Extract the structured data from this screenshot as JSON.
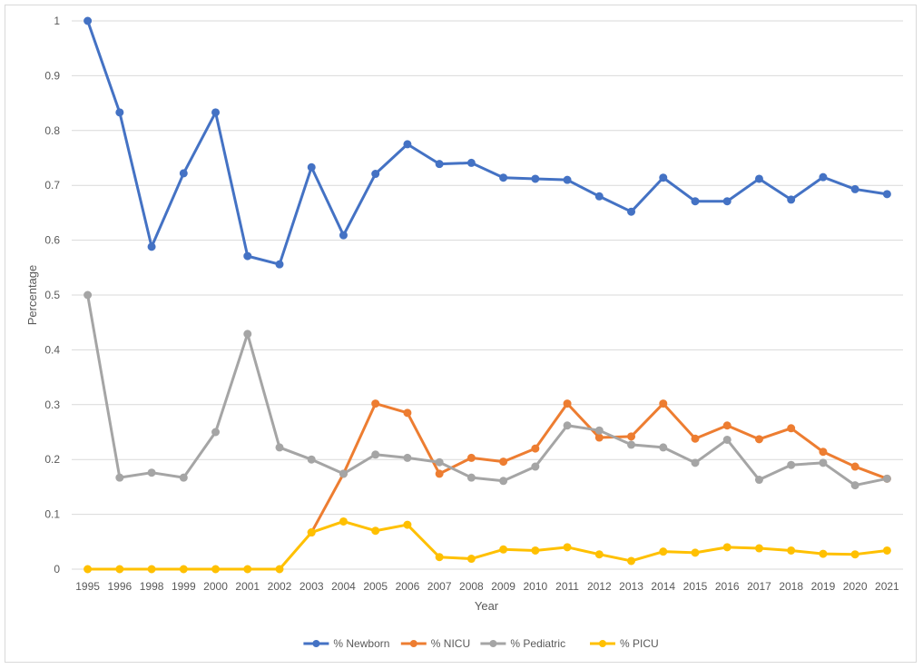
{
  "chart_data": {
    "type": "line",
    "xlabel": "Year",
    "ylabel": "Percentage",
    "ylim": [
      0,
      1
    ],
    "yticks": [
      "0",
      "0.1",
      "0.2",
      "0.3",
      "0.4",
      "0.5",
      "0.6",
      "0.7",
      "0.8",
      "0.9",
      "1"
    ],
    "categories": [
      "1995",
      "1996",
      "1998",
      "1999",
      "2000",
      "2001",
      "2002",
      "2003",
      "2004",
      "2005",
      "2006",
      "2007",
      "2008",
      "2009",
      "2010",
      "2011",
      "2012",
      "2013",
      "2014",
      "2015",
      "2016",
      "2017",
      "2018",
      "2019",
      "2020",
      "2021"
    ],
    "grid": "horizontal",
    "legend_position": "bottom",
    "series": [
      {
        "name": "% Newborn",
        "color": "#4472c4",
        "values": [
          1.0,
          0.833,
          0.588,
          0.722,
          0.833,
          0.571,
          0.556,
          0.733,
          0.609,
          0.721,
          0.775,
          0.739,
          0.741,
          0.714,
          0.712,
          0.71,
          0.68,
          0.652,
          0.714,
          0.671,
          0.671,
          0.712,
          0.674,
          0.715,
          0.693,
          0.684
        ]
      },
      {
        "name": "% NICU",
        "color": "#ed7d31",
        "values": [
          null,
          null,
          null,
          null,
          null,
          null,
          null,
          0.067,
          0.174,
          0.302,
          0.285,
          0.174,
          0.203,
          0.196,
          0.22,
          0.302,
          0.24,
          0.242,
          0.302,
          0.238,
          0.262,
          0.237,
          0.257,
          0.214,
          0.187,
          0.165
        ]
      },
      {
        "name": "% Pediatric",
        "color": "#a5a5a5",
        "values": [
          0.5,
          0.167,
          0.176,
          0.167,
          0.25,
          0.429,
          0.222,
          0.2,
          0.174,
          0.209,
          0.203,
          0.195,
          0.167,
          0.161,
          0.187,
          0.262,
          0.253,
          0.227,
          0.222,
          0.194,
          0.236,
          0.163,
          0.19,
          0.194,
          0.153,
          0.165
        ]
      },
      {
        "name": "% PICU",
        "color": "#ffc000",
        "values": [
          0,
          0,
          0,
          0,
          0,
          0,
          0,
          0.067,
          0.087,
          0.07,
          0.081,
          0.022,
          0.019,
          0.036,
          0.034,
          0.04,
          0.027,
          0.015,
          0.032,
          0.03,
          0.04,
          0.038,
          0.034,
          0.028,
          0.027,
          0.034
        ]
      }
    ]
  }
}
